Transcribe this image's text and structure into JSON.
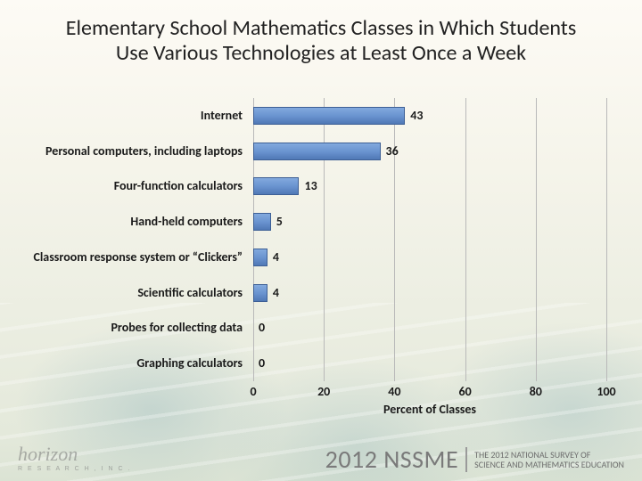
{
  "title_line1": "Elementary School Mathematics Classes in Which Students",
  "title_line2": "Use Various Technologies at Least Once a Week",
  "chart": {
    "type": "bar-horizontal",
    "x_axis_title": "Percent of Classes",
    "xlim": [
      0,
      100
    ],
    "ticks": [
      0,
      20,
      40,
      60,
      80,
      100
    ],
    "bar_color_top": "#82a9de",
    "bar_color_mid": "#6a94d0",
    "bar_color_bottom": "#4f78b5",
    "bar_border": "#3d5f95",
    "grid_color": "#b9b9b9",
    "background_color": "transparent",
    "label_fontsize": 14,
    "categories": [
      {
        "label": "Internet",
        "value": 43
      },
      {
        "label": "Personal computers, including laptops",
        "value": 36
      },
      {
        "label": "Four-function calculators",
        "value": 13
      },
      {
        "label": "Hand-held computers",
        "value": 5
      },
      {
        "label": "Classroom response system or “Clickers”",
        "value": 4
      },
      {
        "label": "Scientific calculators",
        "value": 4
      },
      {
        "label": "Probes for collecting data",
        "value": 0
      },
      {
        "label": "Graphing calculators",
        "value": 0
      }
    ]
  },
  "footer": {
    "logo_text": "horizon",
    "logo_sub": "R E S E A R C H ,  I N C .",
    "survey_year": "2012 NSSME",
    "survey_line1": "THE 2012 NATIONAL SURVEY OF",
    "survey_line2": "SCIENCE AND MATHEMATICS EDUCATION"
  }
}
